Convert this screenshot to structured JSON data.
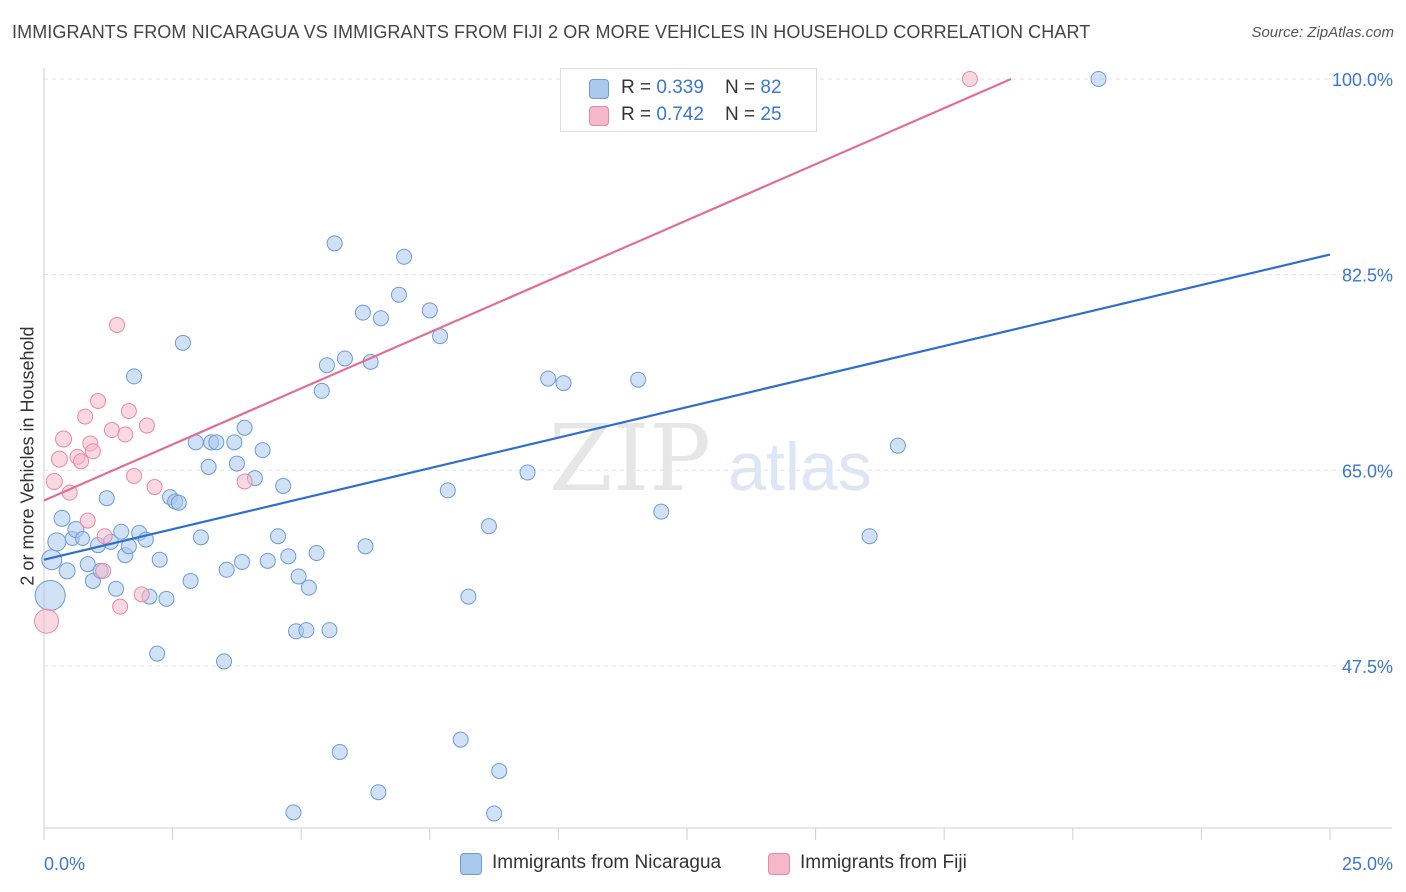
{
  "title": "IMMIGRANTS FROM NICARAGUA VS IMMIGRANTS FROM FIJI 2 OR MORE VEHICLES IN HOUSEHOLD CORRELATION CHART",
  "source": "Source: ZipAtlas.com",
  "watermark": {
    "zip": "ZIP",
    "atlas": "atlas"
  },
  "legend": {
    "nicaragua": {
      "r_label": "R = ",
      "r_value": "0.339",
      "n_label": "N = ",
      "n_value": "82"
    },
    "fiji": {
      "r_label": "R = ",
      "r_value": "0.742",
      "n_label": "N = ",
      "n_value": "25"
    }
  },
  "colors": {
    "nicaragua_fill": "#a9c8ec",
    "nicaragua_stroke": "#6d9bd6",
    "nicaragua_line": "#2f6fcc",
    "fiji_fill": "#f5b8ca",
    "fiji_stroke": "#e58aa5",
    "fiji_line": "#e06f95",
    "tick_label": "#3a78c9",
    "grid": "#e2e2e2"
  },
  "chart_data": {
    "type": "scatter",
    "title": "IMMIGRANTS FROM NICARAGUA VS IMMIGRANTS FROM FIJI 2 OR MORE VEHICLES IN HOUSEHOLD CORRELATION CHART",
    "xlabel": "",
    "ylabel": "2 or more Vehicles in Household",
    "xlim": [
      0,
      25
    ],
    "ylim": [
      33,
      101.7
    ],
    "x_tick_labels": [
      {
        "value": 0,
        "label": "0.0%"
      },
      {
        "value": 25,
        "label": "25.0%"
      }
    ],
    "y_tick_labels": [
      {
        "value": 47.5,
        "label": "47.5%"
      },
      {
        "value": 65.0,
        "label": "65.0%"
      },
      {
        "value": 82.5,
        "label": "82.5%"
      },
      {
        "value": 100.0,
        "label": "100.0%"
      }
    ],
    "grid": true,
    "legend_position": "top-center",
    "series": [
      {
        "name": "Immigrants from Nicaragua",
        "trendline": {
          "x": [
            0,
            25
          ],
          "y": [
            57.0,
            84.3
          ]
        },
        "points": [
          [
            0.12,
            53.8,
            30
          ],
          [
            0.15,
            57.0,
            20
          ],
          [
            0.25,
            58.6,
            18
          ],
          [
            0.35,
            60.7,
            16
          ],
          [
            0.45,
            56.0,
            16
          ],
          [
            0.55,
            58.9,
            14
          ],
          [
            0.62,
            59.7,
            16
          ],
          [
            0.75,
            58.9,
            14
          ],
          [
            0.85,
            56.6,
            15
          ],
          [
            0.95,
            55.1,
            15
          ],
          [
            1.05,
            58.3,
            15
          ],
          [
            1.1,
            56.0,
            15
          ],
          [
            1.22,
            62.5,
            15
          ],
          [
            1.3,
            58.6,
            15
          ],
          [
            1.4,
            54.4,
            15
          ],
          [
            1.5,
            59.5,
            15
          ],
          [
            1.58,
            57.4,
            15
          ],
          [
            1.65,
            58.2,
            15
          ],
          [
            1.75,
            73.4,
            15
          ],
          [
            1.85,
            59.4,
            15
          ],
          [
            1.98,
            58.8,
            15
          ],
          [
            2.05,
            53.7,
            15
          ],
          [
            2.2,
            48.6,
            15
          ],
          [
            2.25,
            57.0,
            15
          ],
          [
            2.38,
            53.5,
            15
          ],
          [
            2.45,
            62.6,
            15
          ],
          [
            2.55,
            62.2,
            15
          ],
          [
            2.62,
            62.1,
            15
          ],
          [
            2.7,
            76.4,
            15
          ],
          [
            2.85,
            55.1,
            15
          ],
          [
            2.95,
            67.5,
            15
          ],
          [
            3.05,
            59.0,
            15
          ],
          [
            3.2,
            65.3,
            15
          ],
          [
            3.25,
            67.5,
            15
          ],
          [
            3.35,
            67.5,
            15
          ],
          [
            3.5,
            47.9,
            15
          ],
          [
            3.55,
            56.1,
            15
          ],
          [
            3.7,
            67.5,
            15
          ],
          [
            3.75,
            65.6,
            15
          ],
          [
            3.85,
            56.8,
            15
          ],
          [
            3.9,
            68.8,
            15
          ],
          [
            4.1,
            64.3,
            15
          ],
          [
            4.25,
            66.8,
            15
          ],
          [
            4.35,
            56.9,
            15
          ],
          [
            4.55,
            59.1,
            15
          ],
          [
            4.65,
            63.6,
            15
          ],
          [
            4.75,
            57.3,
            15
          ],
          [
            4.85,
            34.4,
            15
          ],
          [
            4.9,
            50.6,
            15
          ],
          [
            4.95,
            55.5,
            15
          ],
          [
            5.1,
            50.7,
            15
          ],
          [
            5.15,
            54.5,
            15
          ],
          [
            5.3,
            57.6,
            15
          ],
          [
            5.4,
            72.1,
            15
          ],
          [
            5.5,
            74.4,
            15
          ],
          [
            5.55,
            50.7,
            15
          ],
          [
            5.65,
            85.3,
            15
          ],
          [
            5.75,
            39.8,
            15
          ],
          [
            5.85,
            75.0,
            15
          ],
          [
            6.2,
            79.1,
            15
          ],
          [
            6.25,
            58.2,
            15
          ],
          [
            6.35,
            74.7,
            15
          ],
          [
            6.5,
            36.2,
            15
          ],
          [
            6.55,
            78.6,
            15
          ],
          [
            6.9,
            80.7,
            15
          ],
          [
            7.0,
            84.1,
            15
          ],
          [
            7.5,
            79.3,
            15
          ],
          [
            7.7,
            77.0,
            15
          ],
          [
            7.85,
            63.2,
            15
          ],
          [
            8.1,
            40.9,
            15
          ],
          [
            8.25,
            53.7,
            15
          ],
          [
            8.75,
            34.3,
            15
          ],
          [
            8.65,
            60.0,
            15
          ],
          [
            8.85,
            38.1,
            15
          ],
          [
            9.4,
            64.8,
            15
          ],
          [
            9.8,
            73.2,
            15
          ],
          [
            10.1,
            72.8,
            15
          ],
          [
            11.55,
            73.1,
            15
          ],
          [
            16.05,
            59.1,
            15
          ],
          [
            16.6,
            67.2,
            15
          ],
          [
            20.5,
            100.0,
            15
          ],
          [
            12.0,
            61.3,
            15
          ]
        ]
      },
      {
        "name": "Immigrants from Fiji",
        "trendline": {
          "x": [
            0,
            18.8
          ],
          "y": [
            62.3,
            100.0
          ]
        },
        "points": [
          [
            0.05,
            51.5,
            24
          ],
          [
            0.2,
            64.0,
            16
          ],
          [
            0.3,
            66.0,
            16
          ],
          [
            0.38,
            67.8,
            16
          ],
          [
            0.5,
            63.0,
            15
          ],
          [
            0.65,
            66.2,
            15
          ],
          [
            0.72,
            65.8,
            15
          ],
          [
            0.8,
            69.8,
            15
          ],
          [
            0.9,
            67.4,
            15
          ],
          [
            0.95,
            66.7,
            15
          ],
          [
            1.05,
            71.2,
            15
          ],
          [
            1.15,
            56.0,
            15
          ],
          [
            1.18,
            59.1,
            15
          ],
          [
            1.32,
            68.6,
            15
          ],
          [
            1.42,
            78.0,
            15
          ],
          [
            1.48,
            52.8,
            15
          ],
          [
            1.58,
            68.2,
            15
          ],
          [
            1.65,
            70.3,
            15
          ],
          [
            1.75,
            64.5,
            15
          ],
          [
            1.9,
            53.9,
            15
          ],
          [
            2.0,
            69.0,
            15
          ],
          [
            2.15,
            63.5,
            15
          ],
          [
            3.9,
            64.0,
            15
          ],
          [
            18.0,
            100.0,
            15
          ],
          [
            0.85,
            60.5,
            15
          ]
        ]
      }
    ]
  },
  "bottom_legend": [
    {
      "key": "nicaragua",
      "label": "Immigrants from Nicaragua"
    },
    {
      "key": "fiji",
      "label": "Immigrants from Fiji"
    }
  ]
}
